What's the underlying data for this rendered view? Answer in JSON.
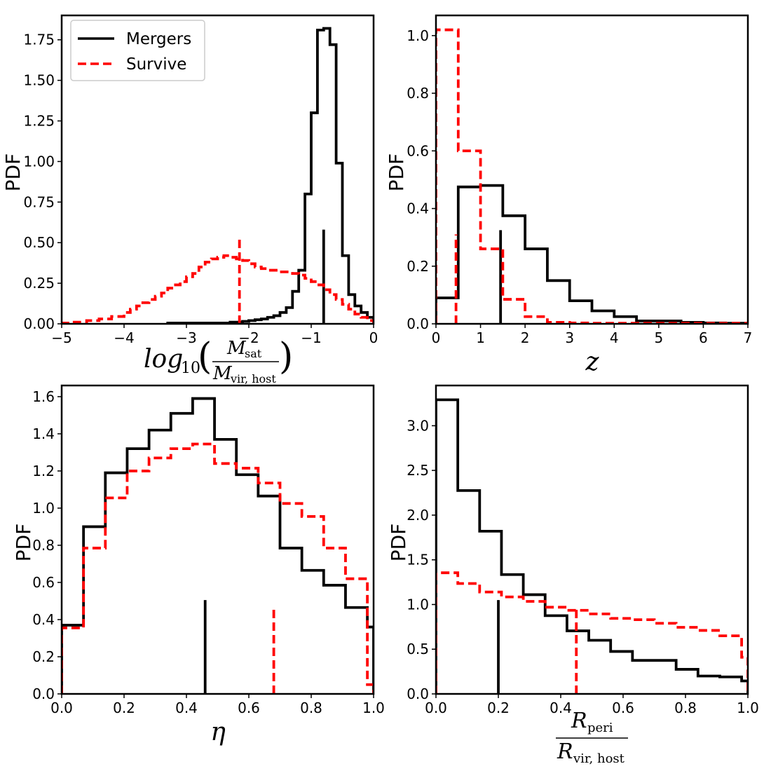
{
  "legend": {
    "mergers_label": "Mergers",
    "survive_label": "Survive"
  },
  "colors": {
    "mergers": "#000000",
    "survive": "#ff0000"
  },
  "chart_data": [
    {
      "id": "mass",
      "type": "histogram-step",
      "ylabel": "PDF",
      "xlabel": {
        "main": "log",
        "sub": "10",
        "num_main": "M",
        "num_sub": "sat",
        "den_main": "M",
        "den_sub": "vir, host"
      },
      "xlim": [
        -5,
        0
      ],
      "ylim": [
        0,
        1.9
      ],
      "xticks": [
        -5,
        -4,
        -3,
        -2,
        -1,
        0
      ],
      "xtick_labels": [
        "−5",
        "−4",
        "−3",
        "−2",
        "−1",
        "0"
      ],
      "yticks": [
        0,
        0.25,
        0.5,
        0.75,
        1.0,
        1.25,
        1.5,
        1.75
      ],
      "ytick_labels": [
        "0.00",
        "0.25",
        "0.50",
        "0.75",
        "1.00",
        "1.25",
        "1.50",
        "1.75"
      ],
      "series": [
        {
          "name": "Mergers",
          "edges": [
            -3.3,
            -3.2,
            -3.1,
            -3.0,
            -2.9,
            -2.8,
            -2.7,
            -2.6,
            -2.5,
            -2.4,
            -2.3,
            -2.2,
            -2.1,
            -2.0,
            -1.9,
            -1.8,
            -1.7,
            -1.6,
            -1.5,
            -1.4,
            -1.3,
            -1.2,
            -1.1,
            -1.0,
            -0.9,
            -0.8,
            -0.7,
            -0.6,
            -0.5,
            -0.4,
            -0.3,
            -0.2,
            -0.1,
            0.0
          ],
          "values": [
            0.005,
            0.005,
            0.005,
            0.005,
            0.005,
            0.005,
            0.005,
            0.005,
            0.005,
            0.005,
            0.01,
            0.01,
            0.015,
            0.02,
            0.025,
            0.03,
            0.04,
            0.05,
            0.07,
            0.1,
            0.2,
            0.33,
            0.8,
            1.3,
            1.81,
            1.82,
            1.72,
            0.99,
            0.42,
            0.18,
            0.11,
            0.07,
            0.04
          ],
          "median": -0.8,
          "median_height": 0.58
        },
        {
          "name": "Survive",
          "edges": [
            -5.0,
            -4.8,
            -4.6,
            -4.4,
            -4.2,
            -4.0,
            -3.9,
            -3.8,
            -3.7,
            -3.6,
            -3.5,
            -3.4,
            -3.3,
            -3.2,
            -3.1,
            -3.0,
            -2.9,
            -2.8,
            -2.7,
            -2.6,
            -2.5,
            -2.4,
            -2.3,
            -2.2,
            -2.1,
            -2.0,
            -1.9,
            -1.8,
            -1.7,
            -1.6,
            -1.5,
            -1.4,
            -1.3,
            -1.2,
            -1.1,
            -1.0,
            -0.9,
            -0.8,
            -0.7,
            -0.6,
            -0.5,
            -0.4,
            -0.3,
            -0.2,
            -0.1,
            0.0
          ],
          "values": [
            0.005,
            0.01,
            0.02,
            0.03,
            0.045,
            0.07,
            0.09,
            0.11,
            0.13,
            0.15,
            0.17,
            0.19,
            0.22,
            0.24,
            0.26,
            0.29,
            0.31,
            0.35,
            0.38,
            0.4,
            0.41,
            0.42,
            0.41,
            0.4,
            0.39,
            0.37,
            0.35,
            0.34,
            0.33,
            0.33,
            0.32,
            0.32,
            0.31,
            0.3,
            0.28,
            0.26,
            0.24,
            0.21,
            0.18,
            0.15,
            0.12,
            0.09,
            0.06,
            0.04,
            0.02
          ],
          "median": -2.15,
          "median_height": 0.54
        }
      ]
    },
    {
      "id": "redshift",
      "type": "histogram-step",
      "ylabel": "PDF",
      "xlabel": {
        "main": "z"
      },
      "xlim": [
        0,
        7
      ],
      "ylim": [
        0,
        1.07
      ],
      "xticks": [
        0,
        1,
        2,
        3,
        4,
        5,
        6,
        7
      ],
      "xtick_labels": [
        "0",
        "1",
        "2",
        "3",
        "4",
        "5",
        "6",
        "7"
      ],
      "yticks": [
        0,
        0.2,
        0.4,
        0.6,
        0.8,
        1.0
      ],
      "ytick_labels": [
        "0.0",
        "0.2",
        "0.4",
        "0.6",
        "0.8",
        "1.0"
      ],
      "series": [
        {
          "name": "Mergers",
          "edges": [
            0,
            0.5,
            1.0,
            1.5,
            2.0,
            2.5,
            3.0,
            3.5,
            4.0,
            4.5,
            5.0,
            5.5,
            6.0,
            6.5,
            7.0
          ],
          "values": [
            0.09,
            0.475,
            0.48,
            0.375,
            0.26,
            0.15,
            0.08,
            0.045,
            0.025,
            0.01,
            0.01,
            0.005,
            0.003,
            0.002
          ],
          "median": 1.45,
          "median_height": 0.325
        },
        {
          "name": "Survive",
          "edges": [
            0,
            0.5,
            1.0,
            1.5,
            2.0,
            2.5,
            3.0,
            3.5,
            4.0,
            4.5,
            5.0,
            5.5,
            6.0,
            6.5,
            7.0
          ],
          "values": [
            1.02,
            0.6,
            0.26,
            0.085,
            0.025,
            0.005,
            0.003,
            0.002,
            0.002,
            0.002,
            0.002,
            0.002,
            0.002,
            0.002
          ],
          "median": 0.45,
          "median_height": 0.31
        }
      ]
    },
    {
      "id": "eta",
      "type": "histogram-step",
      "ylabel": "PDF",
      "xlabel": {
        "main": "η"
      },
      "xlim": [
        0,
        1.0
      ],
      "ylim": [
        0,
        1.66
      ],
      "xticks": [
        0,
        0.2,
        0.4,
        0.6,
        0.8,
        1.0
      ],
      "xtick_labels": [
        "0.0",
        "0.2",
        "0.4",
        "0.6",
        "0.8",
        "1.0"
      ],
      "yticks": [
        0,
        0.2,
        0.4,
        0.6,
        0.8,
        1.0,
        1.2,
        1.4,
        1.6
      ],
      "ytick_labels": [
        "0.0",
        "0.2",
        "0.4",
        "0.6",
        "0.8",
        "1.0",
        "1.2",
        "1.4",
        "1.6"
      ],
      "series": [
        {
          "name": "Mergers",
          "edges": [
            0,
            0.07,
            0.14,
            0.21,
            0.28,
            0.35,
            0.42,
            0.49,
            0.56,
            0.63,
            0.7,
            0.77,
            0.84,
            0.91,
            0.98,
            1.0
          ],
          "values": [
            0.37,
            0.9,
            1.19,
            1.32,
            1.42,
            1.51,
            1.59,
            1.37,
            1.18,
            1.065,
            0.785,
            0.665,
            0.585,
            0.465,
            0.36
          ],
          "median": 0.46,
          "median_height": 0.505
        },
        {
          "name": "Survive",
          "edges": [
            0,
            0.07,
            0.14,
            0.21,
            0.28,
            0.35,
            0.42,
            0.49,
            0.56,
            0.63,
            0.7,
            0.77,
            0.84,
            0.91,
            0.98,
            1.0
          ],
          "values": [
            0.355,
            0.785,
            1.055,
            1.2,
            1.27,
            1.32,
            1.345,
            1.24,
            1.215,
            1.135,
            1.025,
            0.955,
            0.785,
            0.62,
            0.05
          ],
          "median": 0.68,
          "median_height": 0.475
        }
      ]
    },
    {
      "id": "rperi",
      "type": "histogram-step",
      "ylabel": "PDF",
      "xlabel": {
        "num_main": "R",
        "num_sub": "peri",
        "den_main": "R",
        "den_sub": "vir, host"
      },
      "xlim": [
        0,
        1.0
      ],
      "ylim": [
        0,
        3.45
      ],
      "xticks": [
        0,
        0.2,
        0.4,
        0.6,
        0.8,
        1.0
      ],
      "xtick_labels": [
        "0.0",
        "0.2",
        "0.4",
        "0.6",
        "0.8",
        "1.0"
      ],
      "yticks": [
        0,
        0.5,
        1.0,
        1.5,
        2.0,
        2.5,
        3.0
      ],
      "ytick_labels": [
        "0.0",
        "0.5",
        "1.0",
        "1.5",
        "2.0",
        "2.5",
        "3.0"
      ],
      "series": [
        {
          "name": "Mergers",
          "edges": [
            0,
            0.07,
            0.14,
            0.21,
            0.28,
            0.35,
            0.42,
            0.49,
            0.56,
            0.63,
            0.77,
            0.84,
            0.91,
            0.98,
            1.0
          ],
          "values": [
            3.29,
            2.275,
            1.82,
            1.335,
            1.11,
            0.875,
            0.705,
            0.6,
            0.475,
            0.375,
            0.275,
            0.2,
            0.19,
            0.145
          ],
          "median": 0.2,
          "median_height": 1.05
        },
        {
          "name": "Survive",
          "edges": [
            0,
            0.07,
            0.14,
            0.21,
            0.28,
            0.35,
            0.42,
            0.49,
            0.56,
            0.63,
            0.7,
            0.77,
            0.84,
            0.91,
            0.98,
            1.0
          ],
          "values": [
            1.355,
            1.235,
            1.14,
            1.085,
            1.035,
            0.97,
            0.935,
            0.895,
            0.845,
            0.83,
            0.79,
            0.745,
            0.71,
            0.65,
            0.41
          ],
          "median": 0.45,
          "median_height": 0.985
        }
      ]
    }
  ]
}
